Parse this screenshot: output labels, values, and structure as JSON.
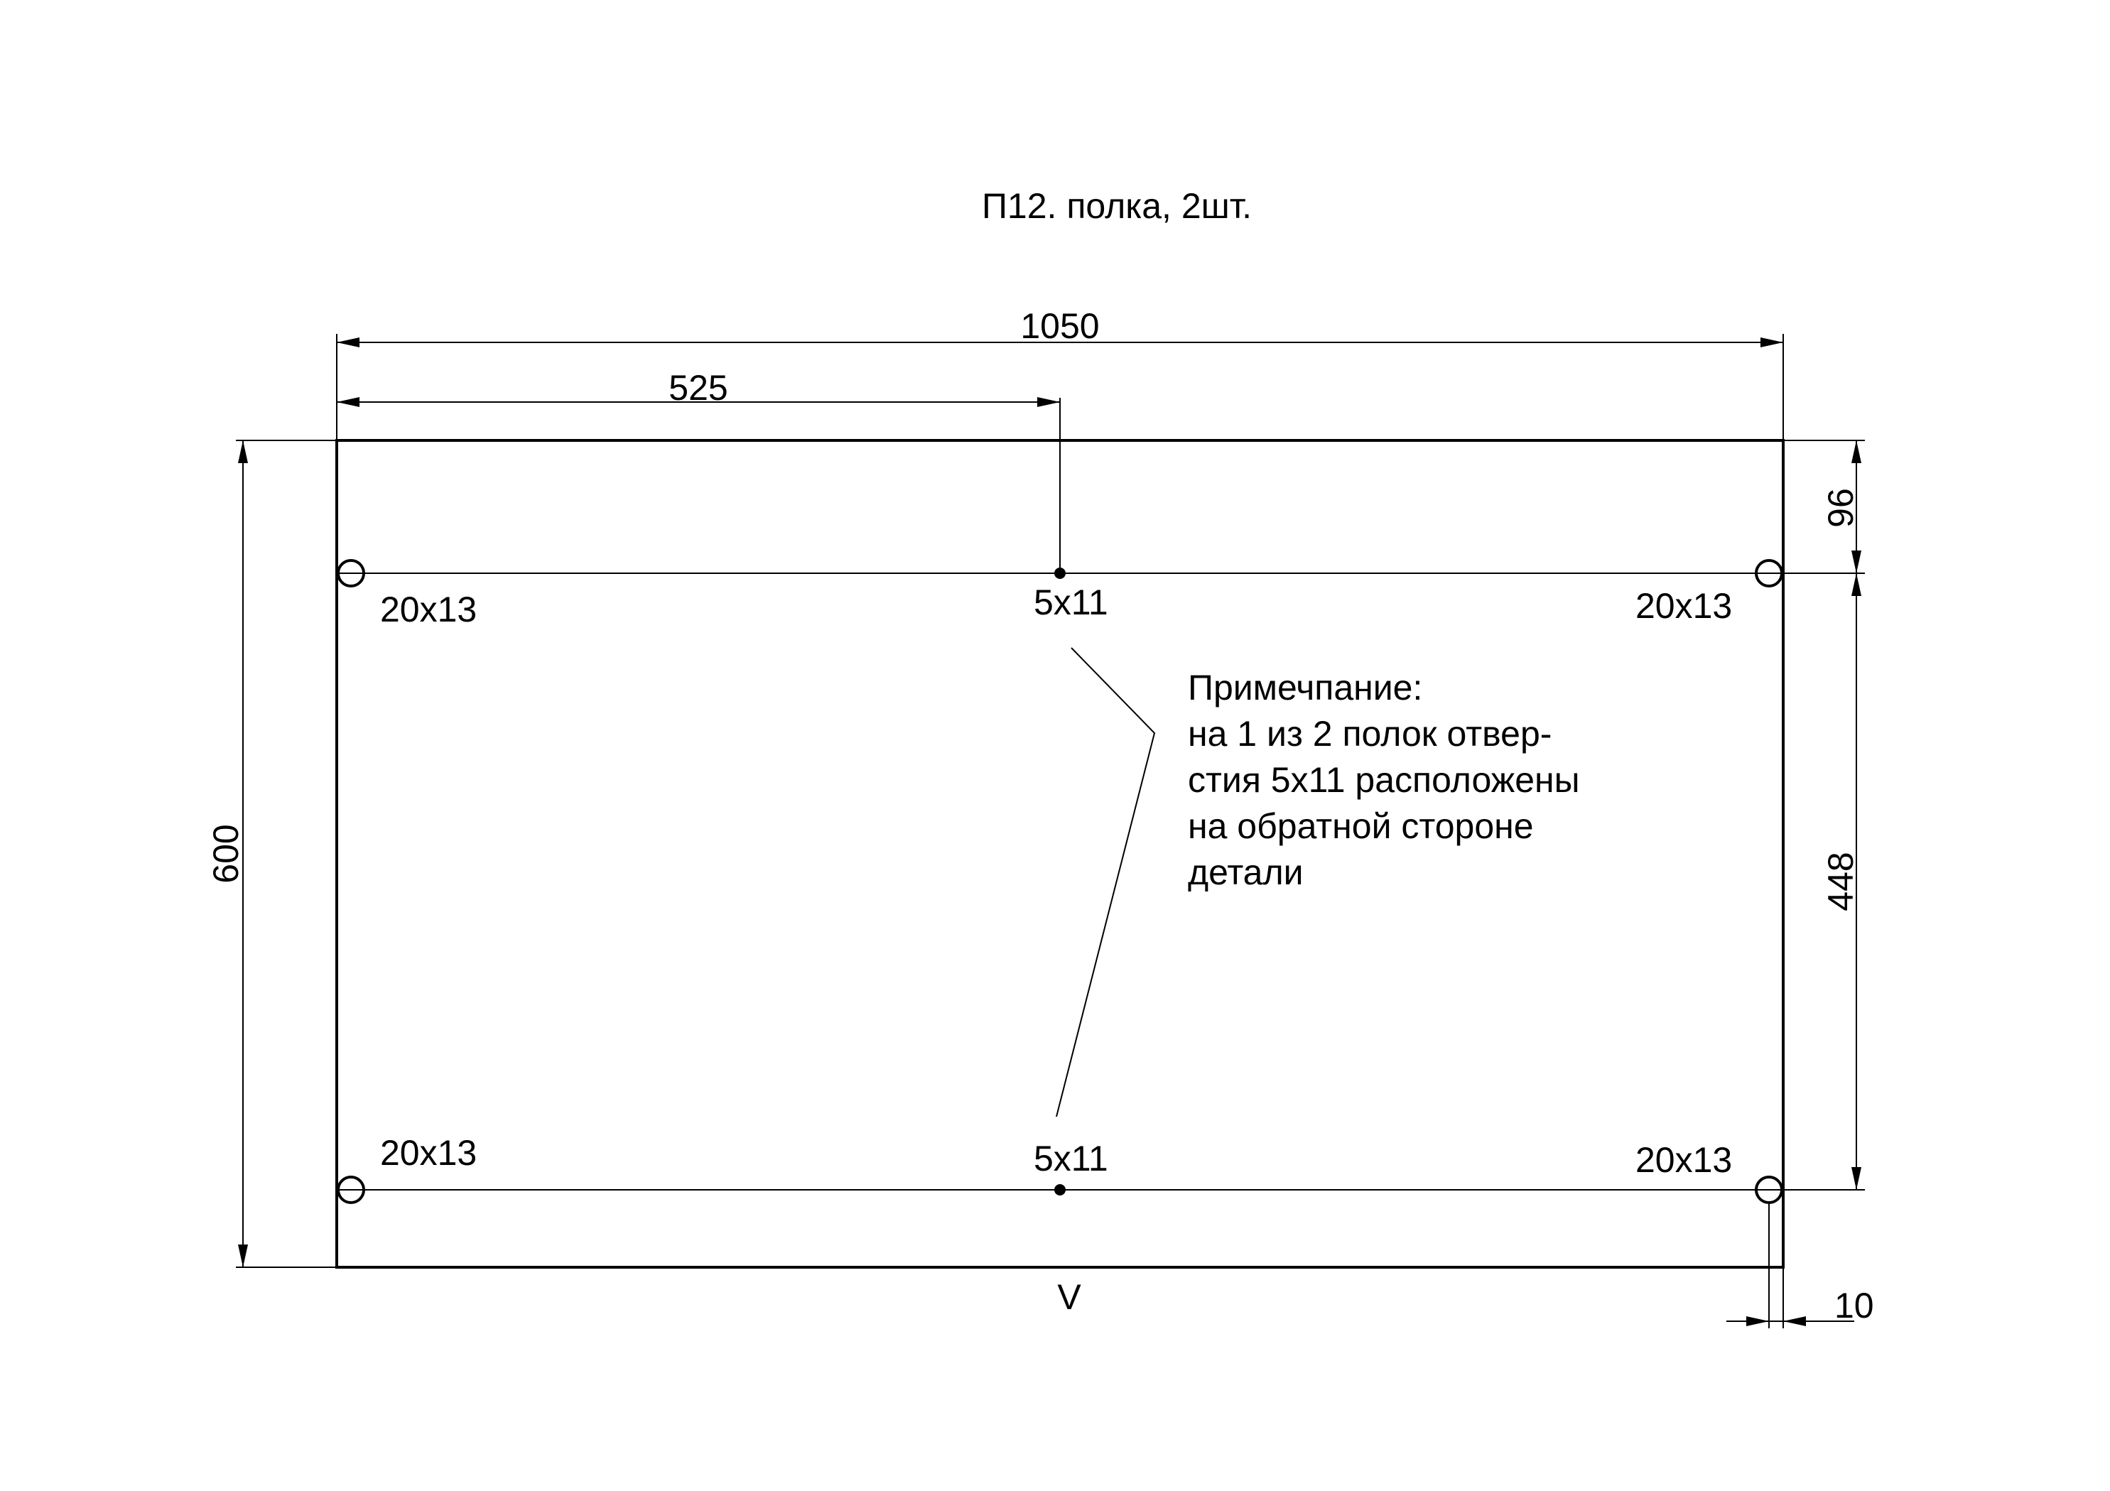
{
  "title": "П12. полка, 2шт.",
  "dimensions": {
    "overall_width": "1050",
    "center_offset": "525",
    "overall_height": "600",
    "top_row_offset": "96",
    "row_spacing": "448",
    "edge_offset": "10"
  },
  "holes": {
    "top_left": "20x13",
    "top_center": "5x11",
    "top_right": "20x13",
    "bottom_left": "20x13",
    "bottom_center": "5x11",
    "bottom_right": "20x13"
  },
  "grain_mark": "V",
  "note": {
    "lines": [
      "Примечпание:",
      "на 1 из 2 полок отвер-",
      "стия 5х11 расположены",
      "на обратной стороне",
      "детали"
    ]
  },
  "colors": {
    "line": "#000000",
    "background": "#ffffff"
  }
}
